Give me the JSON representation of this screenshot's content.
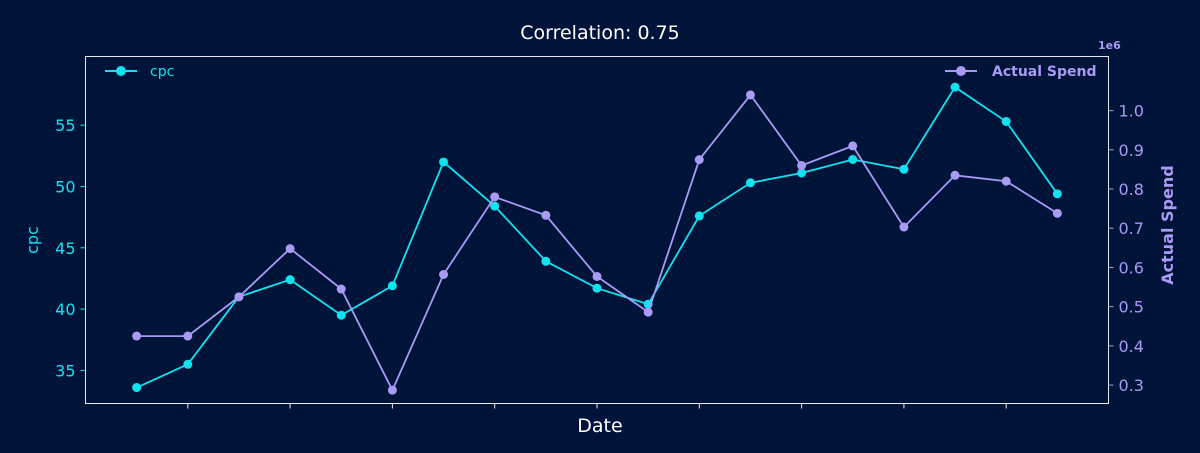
{
  "chart_data": {
    "type": "line",
    "title": "Correlation: 0.75",
    "xlabel": "Date",
    "x": [
      1,
      2,
      3,
      4,
      5,
      6,
      7,
      8,
      9,
      10,
      11,
      12,
      13,
      14,
      15,
      16,
      17,
      18,
      19
    ],
    "xlim": [
      0.0,
      20.0
    ],
    "x_tick_positions": [
      2,
      4,
      6,
      8,
      10,
      12,
      14,
      16,
      18
    ],
    "x_tick_labels": [
      "",
      "",
      "",
      "",
      "",
      "",
      "",
      "",
      ""
    ],
    "left_axis": {
      "label": "cpc",
      "lim": [
        32.3,
        60.6
      ],
      "ticks": [
        35,
        40,
        45,
        50,
        55
      ],
      "color": "#12e2ef"
    },
    "right_axis": {
      "label": "Actual Spend",
      "offset_text": "1e6",
      "lim": [
        0.253,
        1.138
      ],
      "ticks": [
        0.3,
        0.4,
        0.5,
        0.6,
        0.7,
        0.8,
        0.9,
        1.0
      ],
      "tick_labels": [
        "0.3",
        "0.4",
        "0.5",
        "0.6",
        "0.7",
        "0.8",
        "0.9",
        "1.0"
      ],
      "color": "#a99af3"
    },
    "series": [
      {
        "name": "cpc",
        "axis": "left",
        "color": "#12e2ef",
        "values": [
          33.6,
          35.5,
          41.0,
          42.4,
          39.5,
          41.9,
          52.0,
          48.4,
          43.9,
          41.7,
          40.4,
          47.6,
          50.3,
          51.1,
          52.2,
          51.4,
          58.1,
          55.3,
          49.4
        ]
      },
      {
        "name": "Actual Spend",
        "axis": "right",
        "color": "#a99af3",
        "values": [
          0.425,
          0.425,
          0.525,
          0.648,
          0.545,
          0.287,
          0.582,
          0.78,
          0.733,
          0.577,
          0.486,
          0.875,
          1.04,
          0.86,
          0.91,
          0.703,
          0.835,
          0.82,
          0.738
        ]
      }
    ],
    "legend_left": {
      "label": "cpc",
      "placement": "top-left"
    },
    "legend_right": {
      "label": "Actual Spend",
      "placement": "top-right"
    },
    "grid": false
  }
}
